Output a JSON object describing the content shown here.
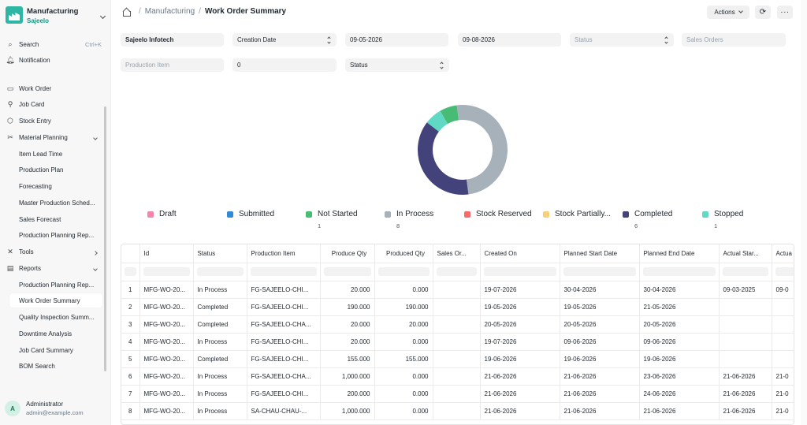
{
  "workspace": {
    "title": "Manufacturing",
    "subtitle": "Sajeelo"
  },
  "sidebar": {
    "search": {
      "label": "Search",
      "shortcut": "Ctrl+K"
    },
    "notification": "Notification",
    "items": [
      {
        "label": "Work Order",
        "icon": "work-order-icon"
      },
      {
        "label": "Job Card",
        "icon": "job-card-icon"
      },
      {
        "label": "Stock Entry",
        "icon": "stock-entry-icon"
      },
      {
        "label": "Material Planning",
        "icon": "material-planning-icon"
      }
    ],
    "material_planning_children": [
      "Item Lead Time",
      "Production Plan",
      "Forecasting",
      "Master Production Sched...",
      "Sales Forecast",
      "Production Planning Rep..."
    ],
    "tools": "Tools",
    "reports": "Reports",
    "reports_children": [
      "Production Planning Rep...",
      "Work Order Summary",
      "Quality Inspection Summ...",
      "Downtime Analysis",
      "Job Card Summary",
      "BOM Search"
    ],
    "active_report": "Work Order Summary"
  },
  "user": {
    "initial": "A",
    "name": "Administrator",
    "email": "admin@example.com"
  },
  "breadcrumb": {
    "module": "Manufacturing",
    "page": "Work Order Summary"
  },
  "toolbar": {
    "actions_label": "Actions",
    "refresh_icon": "refresh-icon",
    "more_label": "···"
  },
  "filters": {
    "company": "Sajeelo Infotech",
    "based_on": "Creation Date",
    "from_date": "09-05-2026",
    "to_date": "09-08-2026",
    "status_placeholder": "Status",
    "sales_orders_placeholder": "Sales Orders",
    "production_item_placeholder": "Production Item",
    "age": "0",
    "group_by": "Status"
  },
  "chart_data": {
    "type": "pie",
    "donut": true,
    "categories": [
      "Draft",
      "Submitted",
      "Not Started",
      "In Process",
      "Stock Reserved",
      "Stock Partially...",
      "Completed",
      "Stopped"
    ],
    "values": [
      0,
      0,
      1,
      8,
      0,
      0,
      6,
      1
    ],
    "count_labels": [
      "",
      "",
      "1",
      "8",
      "",
      "",
      "6",
      "1"
    ],
    "colors": [
      "#f683ae",
      "#318ad8",
      "#48bb74",
      "#a6b1b9",
      "#f56b6b",
      "#facf7a",
      "#44427b",
      "#5fd8c4"
    ]
  },
  "table": {
    "columns": [
      "Id",
      "Status",
      "Production Item",
      "Produce Qty",
      "Produced Qty",
      "Sales Or...",
      "Created On",
      "Planned Start Date",
      "Planned End Date",
      "Actual Star...",
      "Actua"
    ],
    "rows": [
      [
        "1",
        "MFG-WO-20...",
        "In Process",
        "FG-SAJEELO-CHI...",
        "20.000",
        "0.000",
        "",
        "19-07-2026",
        "30-04-2026",
        "30-04-2026",
        "09-03-2025",
        "09-0"
      ],
      [
        "2",
        "MFG-WO-20...",
        "Completed",
        "FG-SAJEELO-CHI...",
        "190.000",
        "190.000",
        "",
        "19-05-2026",
        "19-05-2026",
        "21-05-2026",
        "",
        ""
      ],
      [
        "3",
        "MFG-WO-20...",
        "Completed",
        "FG-SAJEELO-CHA...",
        "20.000",
        "20.000",
        "",
        "20-05-2026",
        "20-05-2026",
        "20-05-2026",
        "",
        ""
      ],
      [
        "4",
        "MFG-WO-20...",
        "In Process",
        "FG-SAJEELO-CHI...",
        "20.000",
        "0.000",
        "",
        "19-07-2026",
        "09-06-2026",
        "09-06-2026",
        "",
        ""
      ],
      [
        "5",
        "MFG-WO-20...",
        "Completed",
        "FG-SAJEELO-CHI...",
        "155.000",
        "155.000",
        "",
        "19-06-2026",
        "19-06-2026",
        "19-06-2026",
        "",
        ""
      ],
      [
        "6",
        "MFG-WO-20...",
        "In Process",
        "FG-SAJEELO-CHA...",
        "1,000.000",
        "0.000",
        "",
        "21-06-2026",
        "21-06-2026",
        "23-06-2026",
        "21-06-2026",
        "21-0"
      ],
      [
        "7",
        "MFG-WO-20...",
        "In Process",
        "FG-SAJEELO-CHI...",
        "200.000",
        "0.000",
        "",
        "21-06-2026",
        "21-06-2026",
        "24-06-2026",
        "21-06-2026",
        "21-0"
      ],
      [
        "8",
        "MFG-WO-20...",
        "In Process",
        "SA-CHAU-CHAU-...",
        "1,000.000",
        "0.000",
        "",
        "21-06-2026",
        "21-06-2026",
        "21-06-2026",
        "21-06-2026",
        "21-0"
      ]
    ]
  }
}
